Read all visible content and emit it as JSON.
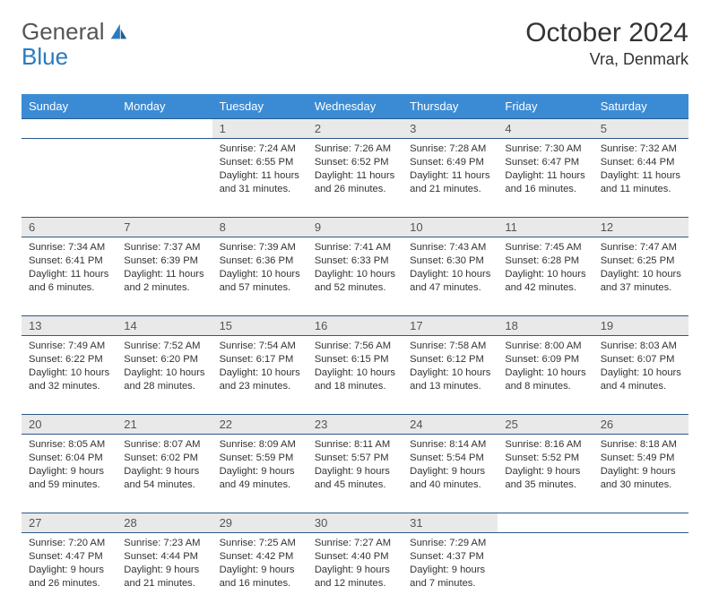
{
  "brand": {
    "t1": "General",
    "t2": "Blue"
  },
  "title": "October 2024",
  "location": "Vra, Denmark",
  "dayHeaders": [
    "Sunday",
    "Monday",
    "Tuesday",
    "Wednesday",
    "Thursday",
    "Friday",
    "Saturday"
  ],
  "colors": {
    "header_bg": "#3b8bd4",
    "header_text": "#ffffff",
    "daynum_bg": "#e9e9e9",
    "row_border": "#2a5a8a",
    "logo_blue": "#2a7bbf"
  },
  "weeks": [
    [
      null,
      null,
      {
        "n": "1",
        "sr": "Sunrise: 7:24 AM",
        "ss": "Sunset: 6:55 PM",
        "dl": "Daylight: 11 hours and 31 minutes."
      },
      {
        "n": "2",
        "sr": "Sunrise: 7:26 AM",
        "ss": "Sunset: 6:52 PM",
        "dl": "Daylight: 11 hours and 26 minutes."
      },
      {
        "n": "3",
        "sr": "Sunrise: 7:28 AM",
        "ss": "Sunset: 6:49 PM",
        "dl": "Daylight: 11 hours and 21 minutes."
      },
      {
        "n": "4",
        "sr": "Sunrise: 7:30 AM",
        "ss": "Sunset: 6:47 PM",
        "dl": "Daylight: 11 hours and 16 minutes."
      },
      {
        "n": "5",
        "sr": "Sunrise: 7:32 AM",
        "ss": "Sunset: 6:44 PM",
        "dl": "Daylight: 11 hours and 11 minutes."
      }
    ],
    [
      {
        "n": "6",
        "sr": "Sunrise: 7:34 AM",
        "ss": "Sunset: 6:41 PM",
        "dl": "Daylight: 11 hours and 6 minutes."
      },
      {
        "n": "7",
        "sr": "Sunrise: 7:37 AM",
        "ss": "Sunset: 6:39 PM",
        "dl": "Daylight: 11 hours and 2 minutes."
      },
      {
        "n": "8",
        "sr": "Sunrise: 7:39 AM",
        "ss": "Sunset: 6:36 PM",
        "dl": "Daylight: 10 hours and 57 minutes."
      },
      {
        "n": "9",
        "sr": "Sunrise: 7:41 AM",
        "ss": "Sunset: 6:33 PM",
        "dl": "Daylight: 10 hours and 52 minutes."
      },
      {
        "n": "10",
        "sr": "Sunrise: 7:43 AM",
        "ss": "Sunset: 6:30 PM",
        "dl": "Daylight: 10 hours and 47 minutes."
      },
      {
        "n": "11",
        "sr": "Sunrise: 7:45 AM",
        "ss": "Sunset: 6:28 PM",
        "dl": "Daylight: 10 hours and 42 minutes."
      },
      {
        "n": "12",
        "sr": "Sunrise: 7:47 AM",
        "ss": "Sunset: 6:25 PM",
        "dl": "Daylight: 10 hours and 37 minutes."
      }
    ],
    [
      {
        "n": "13",
        "sr": "Sunrise: 7:49 AM",
        "ss": "Sunset: 6:22 PM",
        "dl": "Daylight: 10 hours and 32 minutes."
      },
      {
        "n": "14",
        "sr": "Sunrise: 7:52 AM",
        "ss": "Sunset: 6:20 PM",
        "dl": "Daylight: 10 hours and 28 minutes."
      },
      {
        "n": "15",
        "sr": "Sunrise: 7:54 AM",
        "ss": "Sunset: 6:17 PM",
        "dl": "Daylight: 10 hours and 23 minutes."
      },
      {
        "n": "16",
        "sr": "Sunrise: 7:56 AM",
        "ss": "Sunset: 6:15 PM",
        "dl": "Daylight: 10 hours and 18 minutes."
      },
      {
        "n": "17",
        "sr": "Sunrise: 7:58 AM",
        "ss": "Sunset: 6:12 PM",
        "dl": "Daylight: 10 hours and 13 minutes."
      },
      {
        "n": "18",
        "sr": "Sunrise: 8:00 AM",
        "ss": "Sunset: 6:09 PM",
        "dl": "Daylight: 10 hours and 8 minutes."
      },
      {
        "n": "19",
        "sr": "Sunrise: 8:03 AM",
        "ss": "Sunset: 6:07 PM",
        "dl": "Daylight: 10 hours and 4 minutes."
      }
    ],
    [
      {
        "n": "20",
        "sr": "Sunrise: 8:05 AM",
        "ss": "Sunset: 6:04 PM",
        "dl": "Daylight: 9 hours and 59 minutes."
      },
      {
        "n": "21",
        "sr": "Sunrise: 8:07 AM",
        "ss": "Sunset: 6:02 PM",
        "dl": "Daylight: 9 hours and 54 minutes."
      },
      {
        "n": "22",
        "sr": "Sunrise: 8:09 AM",
        "ss": "Sunset: 5:59 PM",
        "dl": "Daylight: 9 hours and 49 minutes."
      },
      {
        "n": "23",
        "sr": "Sunrise: 8:11 AM",
        "ss": "Sunset: 5:57 PM",
        "dl": "Daylight: 9 hours and 45 minutes."
      },
      {
        "n": "24",
        "sr": "Sunrise: 8:14 AM",
        "ss": "Sunset: 5:54 PM",
        "dl": "Daylight: 9 hours and 40 minutes."
      },
      {
        "n": "25",
        "sr": "Sunrise: 8:16 AM",
        "ss": "Sunset: 5:52 PM",
        "dl": "Daylight: 9 hours and 35 minutes."
      },
      {
        "n": "26",
        "sr": "Sunrise: 8:18 AM",
        "ss": "Sunset: 5:49 PM",
        "dl": "Daylight: 9 hours and 30 minutes."
      }
    ],
    [
      {
        "n": "27",
        "sr": "Sunrise: 7:20 AM",
        "ss": "Sunset: 4:47 PM",
        "dl": "Daylight: 9 hours and 26 minutes."
      },
      {
        "n": "28",
        "sr": "Sunrise: 7:23 AM",
        "ss": "Sunset: 4:44 PM",
        "dl": "Daylight: 9 hours and 21 minutes."
      },
      {
        "n": "29",
        "sr": "Sunrise: 7:25 AM",
        "ss": "Sunset: 4:42 PM",
        "dl": "Daylight: 9 hours and 16 minutes."
      },
      {
        "n": "30",
        "sr": "Sunrise: 7:27 AM",
        "ss": "Sunset: 4:40 PM",
        "dl": "Daylight: 9 hours and 12 minutes."
      },
      {
        "n": "31",
        "sr": "Sunrise: 7:29 AM",
        "ss": "Sunset: 4:37 PM",
        "dl": "Daylight: 9 hours and 7 minutes."
      },
      null,
      null
    ]
  ]
}
